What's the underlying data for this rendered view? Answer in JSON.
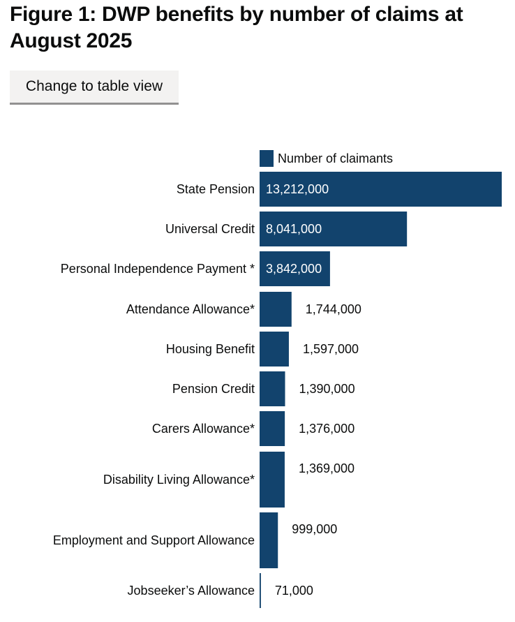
{
  "page": {
    "title": "Figure 1: DWP benefits by number of claims at August 2025",
    "toggle_label": "Change to table view"
  },
  "chart_data": {
    "type": "bar",
    "orientation": "horizontal",
    "title": "Figure 1: DWP benefits by number of claims at August 2025",
    "legend_position": "top",
    "grid": false,
    "xlim": [
      0,
      13212000
    ],
    "categories": [
      "State Pension",
      "Universal Credit",
      "Personal Independence Payment *",
      "Attendance Allowance*",
      "Housing Benefit",
      "Pension Credit",
      "Carers Allowance*",
      "Disability Living Allowance*",
      "Employment and Support Allowance",
      "Jobseeker’s Allowance"
    ],
    "series": [
      {
        "name": "Number of claimants",
        "color": "#12436d",
        "values": [
          13212000,
          8041000,
          3842000,
          1744000,
          1597000,
          1390000,
          1376000,
          1369000,
          999000,
          71000
        ],
        "labels": [
          "13,212,000",
          "8,041,000",
          "3,842,000",
          "1,744,000",
          "1,597,000",
          "1,390,000",
          "1,376,000",
          "1,369,000",
          "999,000",
          "71,000"
        ]
      }
    ]
  }
}
